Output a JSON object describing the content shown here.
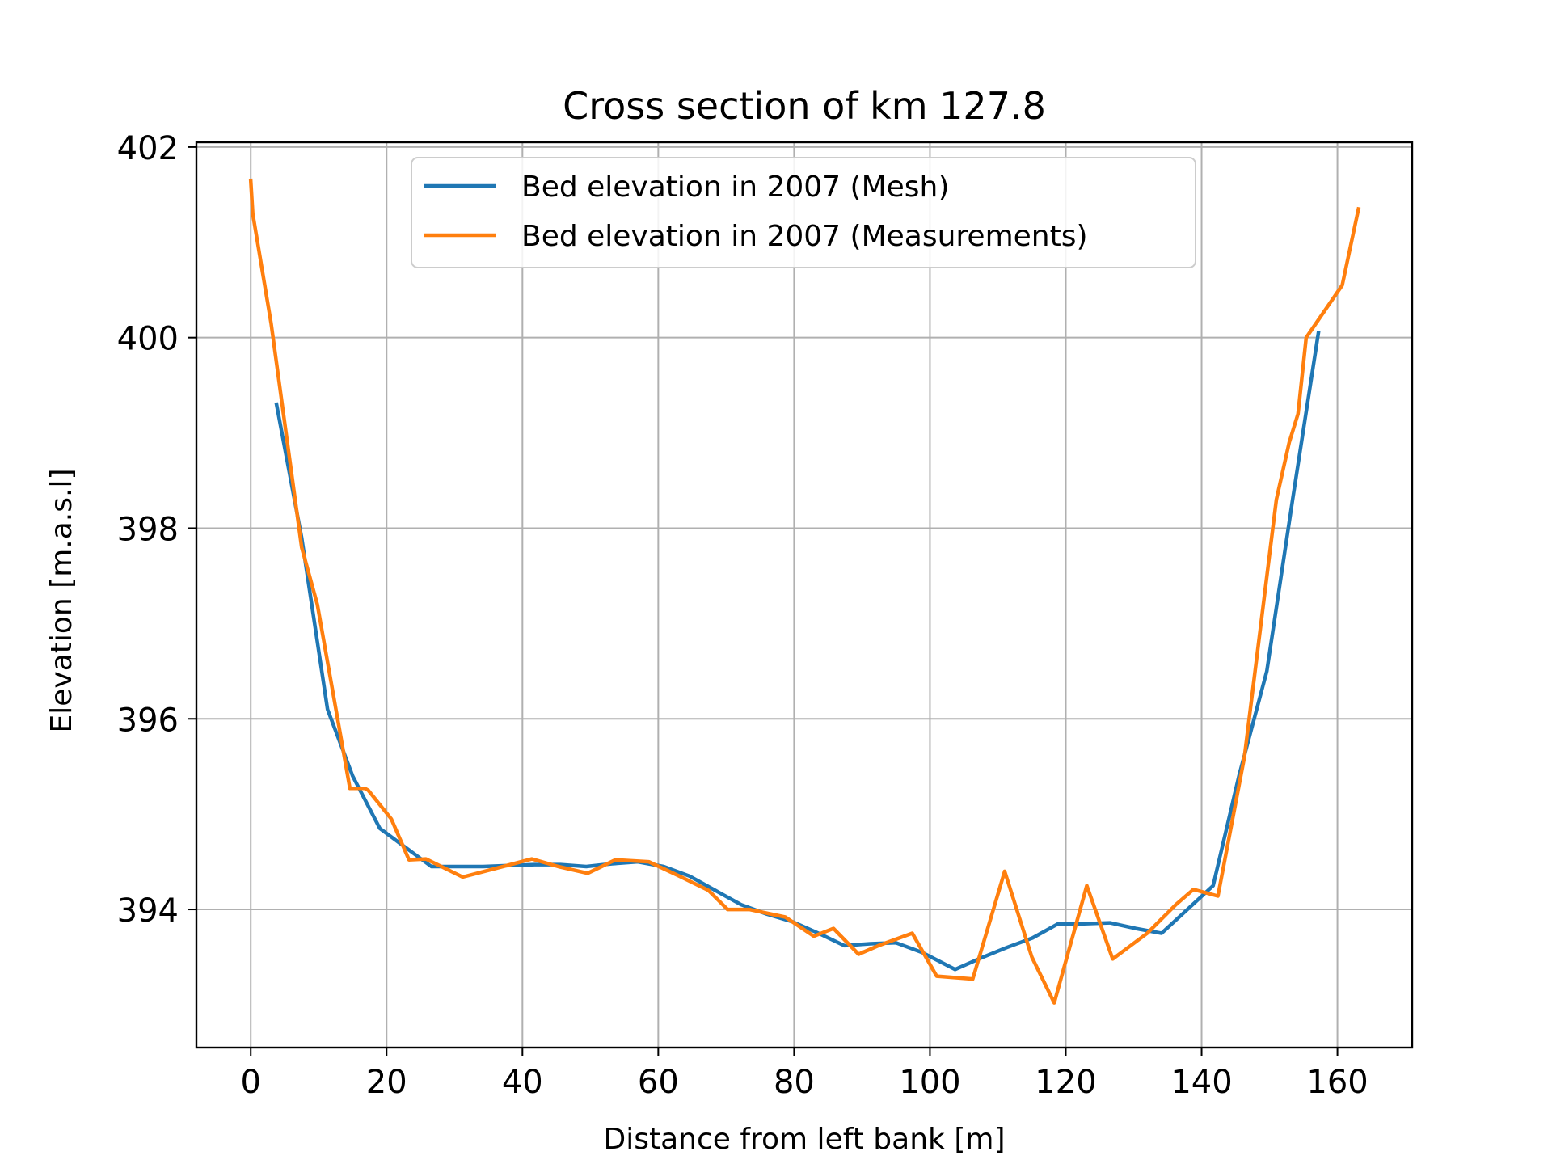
{
  "chart_data": {
    "type": "line",
    "title": "Cross section of km 127.8",
    "xlabel": "Distance from left bank [m]",
    "ylabel": "Elevation [m.a.s.l]",
    "xlim": [
      -8,
      171
    ],
    "ylim": [
      392.55,
      402.05
    ],
    "xticks": [
      0,
      20,
      40,
      60,
      80,
      100,
      120,
      140,
      160
    ],
    "yticks": [
      394,
      396,
      398,
      400,
      402
    ],
    "grid": true,
    "legend_position": "upper center",
    "series": [
      {
        "name": "Bed elevation in 2007 (Mesh)",
        "color": "#1f77b4",
        "x": [
          3.8,
          7.5,
          11.3,
          15,
          19,
          22.8,
          26.6,
          30.4,
          34.2,
          38,
          41.8,
          45.6,
          49.4,
          53.2,
          57,
          60.8,
          64.6,
          68.4,
          72.2,
          76,
          79.8,
          83.6,
          87.4,
          91.2,
          95,
          98.8,
          103.7,
          107.5,
          111.3,
          115.1,
          118.9,
          122.7,
          126.5,
          130.3,
          134.1,
          137.9,
          141.7,
          145.5,
          149.6,
          153.4,
          157.2
        ],
        "y": [
          399.3,
          397.9,
          396.1,
          395.4,
          394.85,
          394.65,
          394.45,
          394.45,
          394.45,
          394.46,
          394.47,
          394.47,
          394.45,
          394.48,
          394.5,
          394.45,
          394.35,
          394.2,
          394.05,
          393.95,
          393.87,
          393.75,
          393.62,
          393.64,
          393.65,
          393.55,
          393.37,
          393.49,
          393.6,
          393.7,
          393.85,
          393.85,
          393.86,
          393.8,
          393.75,
          394.0,
          394.25,
          395.4,
          396.5,
          398.3,
          400.05
        ]
      },
      {
        "name": "Bed elevation in 2007 (Measurements)",
        "color": "#ff7f0e",
        "x": [
          0,
          0.3,
          3,
          7.5,
          9.8,
          14.6,
          16.8,
          17.3,
          20.7,
          23.3,
          25.8,
          31.2,
          41.4,
          45.3,
          49.6,
          53.7,
          58.6,
          63.1,
          67.4,
          70.2,
          73.4,
          78.7,
          82.9,
          85.8,
          89.5,
          92.4,
          97.4,
          101,
          106.3,
          111,
          115,
          118.3,
          123.1,
          126.9,
          132,
          136.2,
          138.8,
          142.4,
          146.3,
          151,
          152.9,
          154.2,
          155.4,
          160.7,
          163.1
        ],
        "y": [
          401.65,
          401.3,
          400.15,
          397.8,
          397.2,
          395.27,
          395.27,
          395.25,
          394.95,
          394.52,
          394.53,
          394.34,
          394.53,
          394.45,
          394.38,
          394.52,
          394.5,
          394.35,
          394.2,
          394.0,
          394.0,
          393.92,
          393.72,
          393.8,
          393.53,
          393.62,
          393.75,
          393.3,
          393.27,
          394.4,
          393.5,
          393.02,
          394.25,
          393.48,
          393.75,
          394.05,
          394.21,
          394.14,
          395.6,
          398.3,
          398.9,
          399.2,
          400.0,
          400.55,
          401.35
        ]
      }
    ]
  }
}
